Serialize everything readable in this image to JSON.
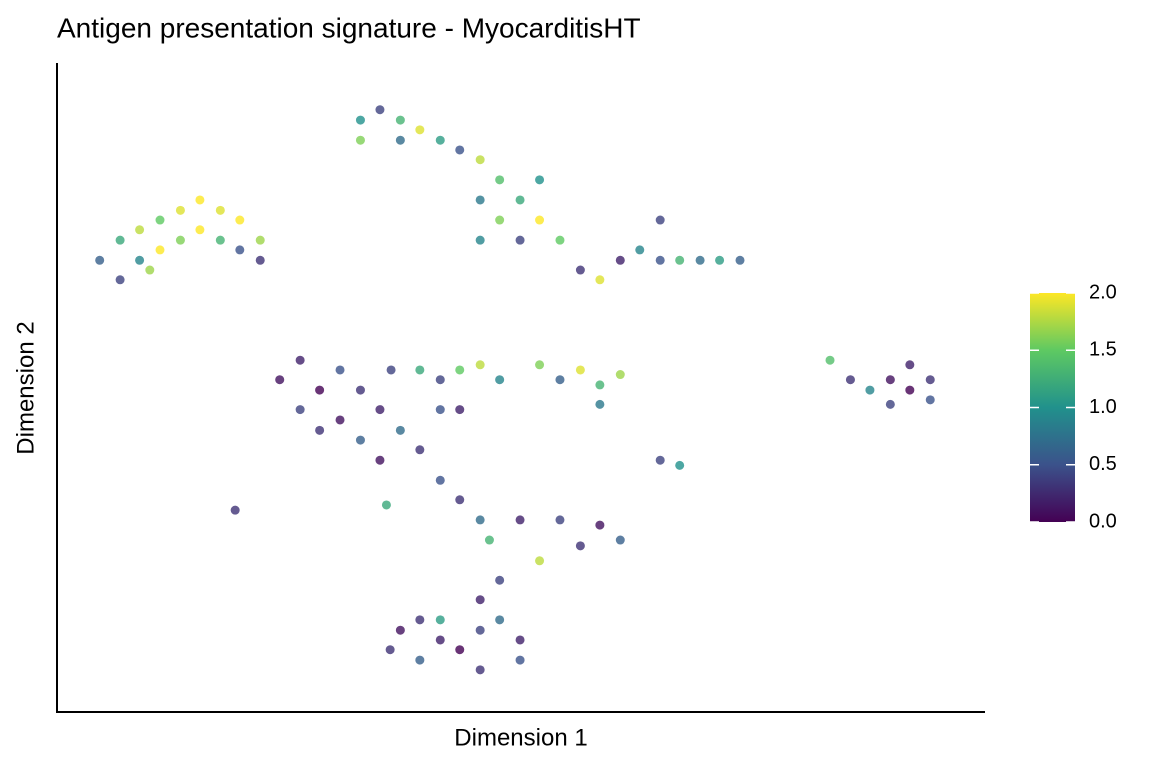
{
  "chart_data": {
    "type": "scatter",
    "title": "Antigen presentation signature - MyocarditisHT",
    "x_label": "Dimension 1",
    "y_label": "Dimension 2",
    "xlim": [
      0,
      100
    ],
    "ylim": [
      0,
      100
    ],
    "colormap": [
      "#440154",
      "#3b528b",
      "#21918c",
      "#5ec962",
      "#fde725"
    ],
    "clim": [
      0,
      2
    ],
    "cticks": [
      {
        "value": 0,
        "label": "0.0"
      },
      0.5,
      {
        "value": 1,
        "label": "1.0"
      },
      1.5,
      {
        "value": 2,
        "label": "2.0"
      }
    ],
    "x": [
      4.6,
      6.8,
      6.8,
      8.9,
      8.9,
      11.1,
      11.1,
      13.3,
      13.3,
      15.4,
      15.4,
      17.6,
      17.6,
      19.7,
      19.7,
      21.9,
      21.9,
      10.0,
      32.7,
      32.7,
      34.8,
      37.0,
      37.0,
      39.1,
      41.3,
      43.4,
      45.6,
      47.7,
      45.6,
      47.7,
      49.9,
      49.9,
      52.0,
      52.0,
      45.6,
      54.2,
      56.4,
      58.5,
      60.7,
      62.8,
      65.0,
      67.1,
      69.3,
      71.4,
      73.6,
      65.0,
      24.0,
      26.2,
      26.2,
      28.3,
      28.3,
      30.5,
      30.5,
      32.7,
      32.7,
      34.8,
      36.0,
      37.0,
      39.1,
      41.3,
      43.4,
      34.8,
      39.1,
      41.3,
      43.4,
      45.6,
      47.7,
      52.0,
      54.2,
      56.4,
      58.5,
      60.7,
      58.5,
      83.3,
      85.5,
      87.6,
      89.8,
      89.8,
      91.9,
      91.9,
      94.1,
      94.1,
      65.0,
      67.1,
      19.2,
      35.5,
      41.3,
      43.4,
      45.6,
      49.9,
      54.2,
      58.5,
      60.7,
      56.4,
      52.0,
      47.7,
      46.6,
      45.6,
      35.9,
      37.0,
      39.1,
      41.3,
      41.3,
      43.4,
      45.6,
      45.6,
      47.7,
      49.9,
      49.9,
      39.1
    ],
    "y": [
      69.6,
      72.7,
      66.6,
      74.3,
      69.6,
      75.8,
      71.2,
      77.3,
      72.7,
      78.9,
      74.3,
      77.3,
      72.7,
      75.8,
      71.2,
      72.7,
      69.6,
      68.1,
      91.2,
      88.1,
      92.8,
      91.2,
      88.1,
      89.7,
      88.1,
      86.6,
      85.1,
      82.0,
      78.9,
      75.8,
      78.9,
      72.7,
      75.8,
      82.0,
      72.7,
      72.7,
      68.1,
      66.6,
      69.6,
      71.2,
      69.6,
      69.6,
      69.6,
      69.6,
      69.6,
      75.8,
      51.2,
      54.2,
      46.6,
      49.6,
      43.4,
      52.7,
      45.0,
      49.6,
      41.9,
      46.6,
      52.7,
      43.4,
      40.4,
      46.6,
      46.6,
      38.8,
      52.7,
      51.2,
      52.7,
      53.5,
      51.2,
      53.5,
      51.2,
      52.7,
      50.4,
      52.0,
      47.4,
      54.2,
      51.2,
      49.6,
      51.2,
      47.4,
      53.5,
      49.6,
      51.2,
      48.1,
      38.8,
      38.0,
      31.1,
      31.9,
      35.7,
      32.7,
      29.6,
      29.6,
      29.6,
      28.8,
      26.5,
      25.6,
      23.3,
      20.3,
      26.5,
      17.3,
      9.6,
      12.6,
      8.0,
      11.1,
      14.2,
      9.6,
      12.6,
      6.5,
      14.2,
      11.1,
      8.0,
      14.2
    ],
    "values": [
      0.6,
      1.2,
      0.4,
      1.8,
      0.9,
      1.5,
      2.0,
      1.9,
      1.6,
      2.0,
      2.0,
      1.9,
      1.3,
      2.0,
      0.5,
      1.7,
      0.3,
      1.7,
      1.0,
      1.6,
      0.4,
      1.3,
      0.7,
      1.9,
      1.1,
      0.5,
      1.8,
      1.4,
      0.8,
      1.6,
      1.2,
      0.4,
      2.0,
      1.0,
      0.9,
      1.5,
      0.3,
      1.9,
      0.2,
      0.9,
      0.5,
      1.3,
      0.7,
      1.1,
      0.6,
      0.4,
      0.1,
      0.2,
      0.4,
      0.0,
      0.3,
      0.5,
      0.1,
      0.3,
      0.6,
      0.2,
      0.4,
      0.7,
      0.3,
      0.5,
      0.2,
      0.1,
      1.2,
      0.4,
      1.5,
      1.8,
      0.9,
      1.6,
      0.6,
      1.9,
      1.3,
      1.7,
      0.8,
      1.4,
      0.3,
      0.9,
      0.1,
      0.4,
      0.2,
      0.0,
      0.3,
      0.5,
      0.4,
      1.0,
      0.3,
      1.2,
      0.5,
      0.3,
      0.7,
      0.2,
      0.4,
      0.1,
      0.6,
      0.3,
      1.8,
      0.4,
      1.3,
      0.2,
      0.3,
      0.1,
      0.6,
      0.2,
      1.1,
      0.0,
      0.4,
      0.3,
      0.7,
      0.2,
      0.5,
      0.3
    ]
  }
}
